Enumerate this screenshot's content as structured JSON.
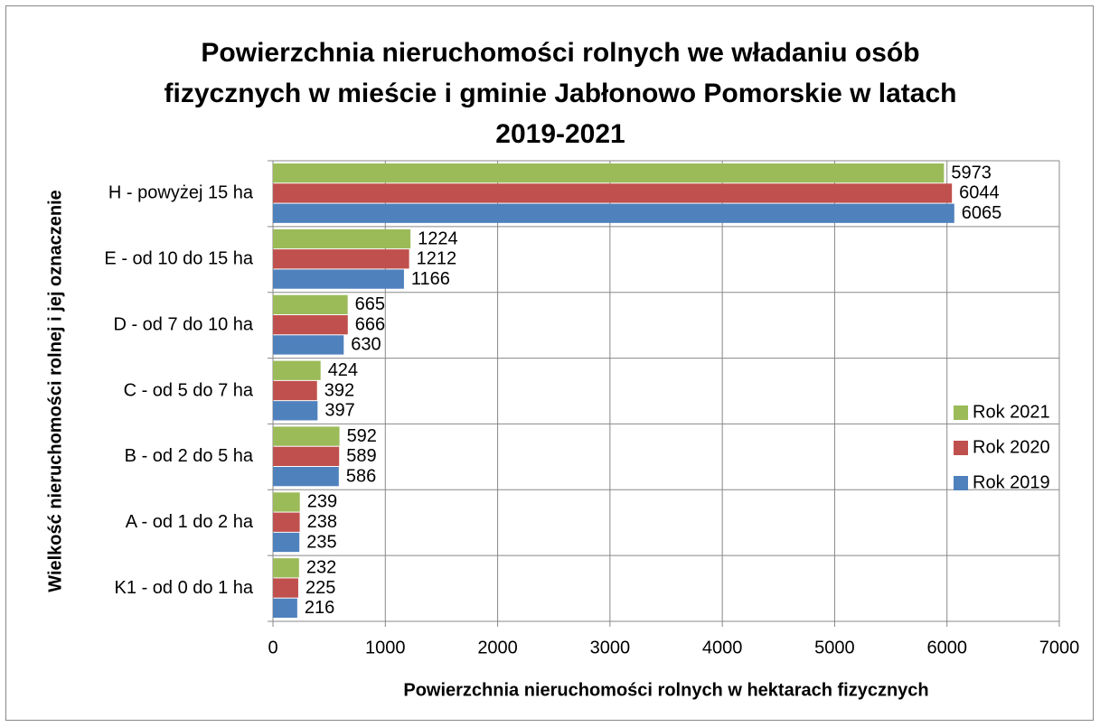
{
  "chart_data": {
    "type": "hbar",
    "title": [
      "Powierzchnia nieruchomości rolnych we władaniu osób",
      "fizycznych w mieście i gminie Jabłonowo Pomorskie w latach",
      "2019-2021"
    ],
    "x_label": "Powierzchnia nieruchomości rolnych w hektarach fizycznych",
    "y_label": "Wielkość nieruchomości rolnej i jej oznaczenie",
    "categories": [
      "H - powyżej 15 ha",
      "E - od 10 do 15 ha",
      "D - od 7 do 10 ha",
      "C - od 5 do 7 ha",
      "B - od 2 do 5 ha",
      "A - od 1 do 2 ha",
      "K1 - od 0 do 1 ha"
    ],
    "series": [
      {
        "name": "Rok 2021",
        "color": "#9bbb59",
        "values": [
          5973,
          1224,
          665,
          424,
          592,
          239,
          232
        ]
      },
      {
        "name": "Rok 2020",
        "color": "#c0504d",
        "values": [
          6044,
          1212,
          666,
          392,
          589,
          238,
          225
        ]
      },
      {
        "name": "Rok 2019",
        "color": "#4f81bd",
        "values": [
          6065,
          1166,
          630,
          397,
          586,
          235,
          216
        ]
      }
    ],
    "xlim": [
      0,
      7000
    ],
    "xticks": [
      0,
      1000,
      2000,
      3000,
      4000,
      5000,
      6000,
      7000
    ],
    "grid": true,
    "legend": "right"
  }
}
